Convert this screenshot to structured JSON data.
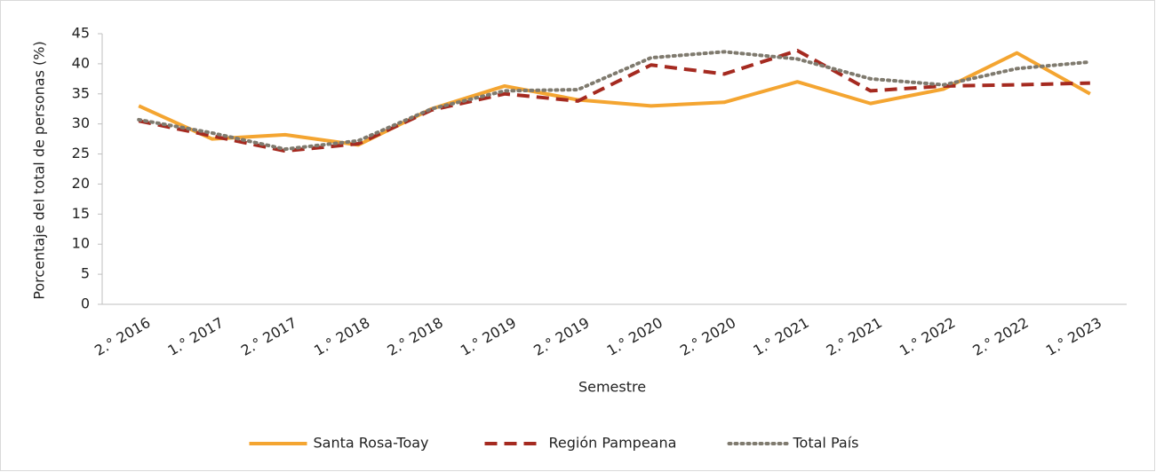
{
  "chart_data": {
    "type": "line",
    "x_label": "Semestre",
    "y_label": "Porcentaje del total de personas (%)",
    "categories": [
      "2.° 2016",
      "1.° 2017",
      "2.° 2017",
      "1.° 2018",
      "2.° 2018",
      "1.° 2019",
      "2.° 2019",
      "1.° 2020",
      "2.° 2020",
      "1.° 2021",
      "2.° 2021",
      "1.° 2022",
      "2.° 2022",
      "1.° 2023"
    ],
    "series": [
      {
        "name": "Santa Rosa-Toay",
        "color": "#f4a531",
        "line_style": "solid",
        "values": [
          33,
          27.5,
          28.2,
          26.5,
          32.5,
          36.3,
          34,
          33,
          33.6,
          37,
          33.4,
          35.8,
          41.8,
          35
        ]
      },
      {
        "name": "Región Pampeana",
        "color": "#a52a20",
        "line_style": "dashed",
        "values": [
          30.5,
          28,
          25.5,
          26.7,
          32.3,
          35,
          33.8,
          39.8,
          38.3,
          42.2,
          35.5,
          36.3,
          36.5,
          36.8
        ]
      },
      {
        "name": "Total País",
        "color": "#7f7a6e",
        "line_style": "dotted",
        "values": [
          30.7,
          28.5,
          25.8,
          27.2,
          32.5,
          35.5,
          35.7,
          41,
          42,
          40.8,
          37.5,
          36.5,
          39.2,
          40.3
        ]
      }
    ],
    "ylim": [
      0,
      45
    ],
    "yticks": [
      0,
      5,
      10,
      15,
      20,
      25,
      30,
      35,
      40,
      45
    ],
    "grid": false,
    "legend": "bottom"
  }
}
